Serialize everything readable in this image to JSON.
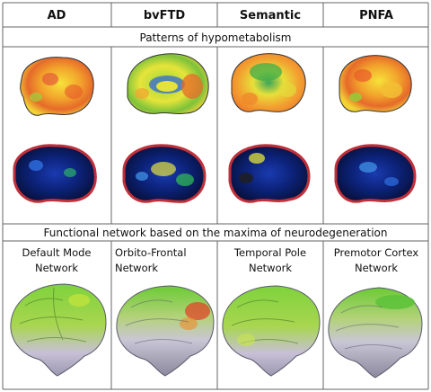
{
  "columns": [
    {
      "label": "AD",
      "network": [
        "Default Mode",
        "Network"
      ]
    },
    {
      "label": "bvFTD",
      "network": [
        "Orbito-Frontal",
        "Network"
      ]
    },
    {
      "label": "Semantic",
      "network": [
        "Temporal Pole",
        "Network"
      ]
    },
    {
      "label": "PNFA",
      "network": [
        "Premotor Cortex",
        "Network"
      ]
    }
  ],
  "sections": {
    "hypometabolism": "Patterns of hypometabolism",
    "network": "Functional network based on the maxima of neurodegeneration"
  },
  "colors": {
    "grid": "#666666",
    "metabolism_low": "#2e9f3c",
    "metabolism_mid": "#f2e63a",
    "metabolism_high": "#f07a2a",
    "atrophy_outline": "#c0303a",
    "atrophy_fill": "#0b1f6a",
    "network_green": "#5cc23a",
    "brain_gray": "#b9b6c8"
  },
  "icons": [
    "brain-pet-image",
    "brain-atrophy-map",
    "brain-3d-render"
  ]
}
